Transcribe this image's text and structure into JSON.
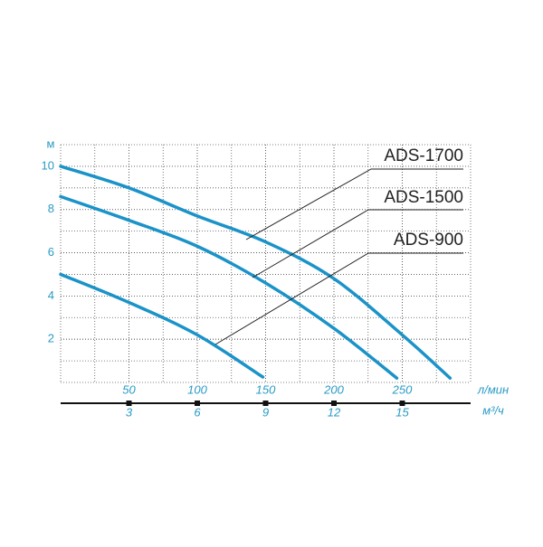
{
  "chart_data": {
    "type": "line",
    "y_label": "м",
    "x_label": "л/мин",
    "x2_label": "м³/ч",
    "xlim": [
      0,
      300
    ],
    "xticks": [
      50,
      100,
      150,
      200,
      250
    ],
    "x2lim": [
      0,
      18
    ],
    "x2ticks": [
      3,
      6,
      9,
      12,
      15
    ],
    "ylim": [
      0,
      11
    ],
    "yticks": [
      2,
      4,
      6,
      8,
      10
    ],
    "grid": true,
    "series": [
      {
        "name": "ADS-1700",
        "color": "#1b93c8",
        "x": [
          0,
          50,
          100,
          150,
          200,
          250,
          285
        ],
        "values": [
          10,
          9,
          7.7,
          6.5,
          4.8,
          2.2,
          0.2
        ]
      },
      {
        "name": "ADS-1500",
        "color": "#1b93c8",
        "x": [
          0,
          50,
          100,
          150,
          200,
          246
        ],
        "values": [
          8.6,
          7.5,
          6.3,
          4.6,
          2.5,
          0.2
        ]
      },
      {
        "name": "ADS-900",
        "color": "#1b93c8",
        "x": [
          0,
          50,
          100,
          148
        ],
        "values": [
          5,
          3.7,
          2.2,
          0.25
        ]
      }
    ]
  }
}
